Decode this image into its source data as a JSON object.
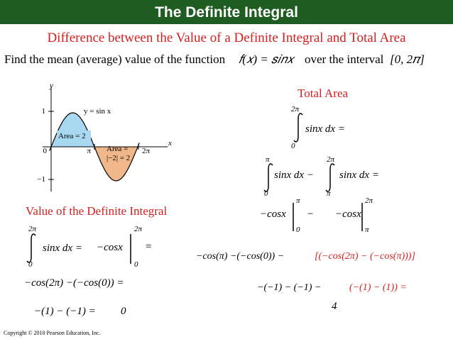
{
  "header": {
    "title": "The Definite Integral",
    "subtitle": "Difference between the Value of a Definite Integral and Total Area"
  },
  "problem": {
    "text": "Find the mean (average) value of the function",
    "function": "𝑓(𝑥) = 𝑠𝑖𝑛𝑥",
    "middle": "over the interval",
    "interval": "[0, 2𝜋]"
  },
  "graph": {
    "y_label": "y",
    "x_label": "x",
    "curve_label": "y = sin x",
    "area_positive": "Area = 2",
    "area_negative_line1": "Area =",
    "area_negative_line2": "|−2| = 2",
    "tick_one": "1",
    "tick_minus_one": "−1",
    "tick_zero": "0",
    "tick_pi": "π",
    "tick_two_pi": "2π"
  },
  "left": {
    "heading": "Value of the Definite Integral",
    "integral": {
      "upper": "2π",
      "lower": "0",
      "integrand": "sinx dx =",
      "antiderivative": "−cosx",
      "eval_upper": "2π",
      "eval_lower": "0",
      "equals": "="
    },
    "step1": "−cos(2π) −(−cos(0)) =",
    "step2": "−(1) − (−1) =",
    "result": "0"
  },
  "right": {
    "heading": "Total Area",
    "integral": {
      "upper": "2π",
      "lower": "0",
      "integrand": "sinx dx ="
    },
    "split": {
      "upper1": "π",
      "lower1": "0",
      "integrand1": "sinx dx −",
      "upper2": "2π",
      "lower2": "π",
      "integrand2": "sinx dx ="
    },
    "eval": {
      "antiderivative1": "−cosx",
      "upper1": "π",
      "lower1": "0",
      "minus": "−",
      "antiderivative2": "−cosx",
      "upper2": "2π",
      "lower2": "π"
    },
    "step1_black": "−cos(π) −(−cos(0)) −",
    "step1_red": "[(−cos(2π) − (−cos(π)))]",
    "step2_black": "−(−1) − (−1) −",
    "step2_red": "(−(1) − (1)) =",
    "result": "4"
  },
  "copyright": "Copyright © 2010 Pearson Education, Inc."
}
